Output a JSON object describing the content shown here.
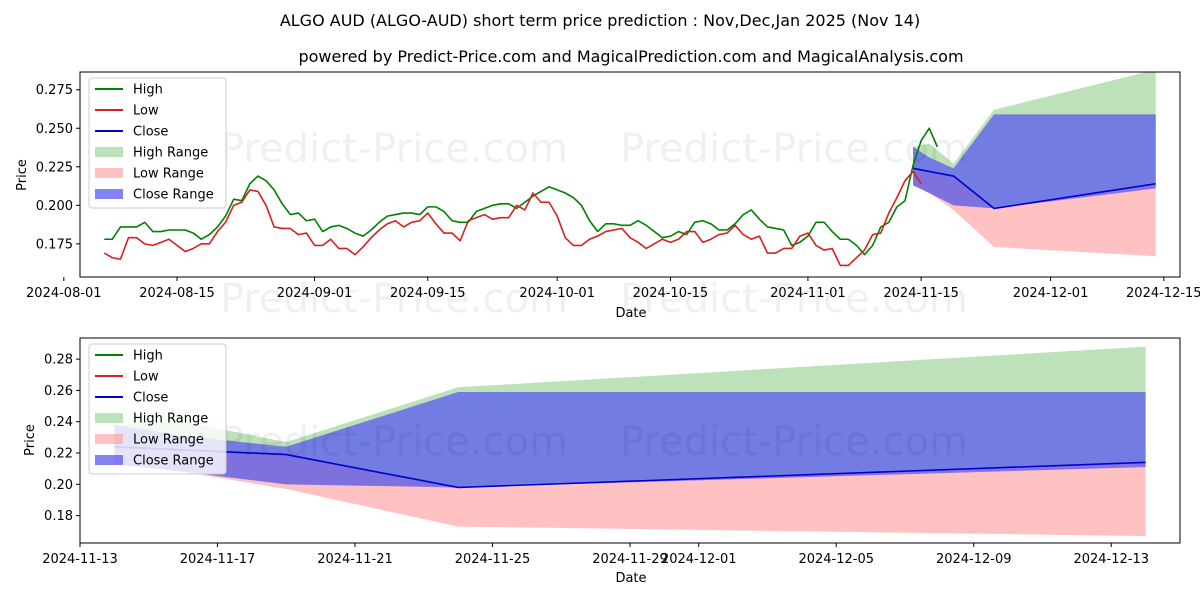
{
  "title": "ALGO AUD (ALGO-AUD) short term price prediction : Nov,Dec,Jan 2025 (Nov 14)",
  "subtitle": "powered by Predict-Price.com and MagicalPrediction.com and MagicalAnalysis.com",
  "watermark": "Predict-Price.com",
  "colors": {
    "high": "#008000",
    "low": "#d62020",
    "close": "#0000cc",
    "high_range": "#94cf8e",
    "low_range": "#ff9f9f",
    "close_range": "#5a5af0"
  },
  "chart_data": [
    {
      "type": "line",
      "panel": "top",
      "xlabel": "Date",
      "ylabel": "Price",
      "xlim": [
        "2024-08-03",
        "2024-12-17"
      ],
      "ylim": [
        0.1535,
        0.2865
      ],
      "xticks": [
        "2024-08-01",
        "2024-08-15",
        "2024-09-01",
        "2024-09-15",
        "2024-10-01",
        "2024-10-15",
        "2024-11-01",
        "2024-11-15",
        "2024-12-01",
        "2024-12-15"
      ],
      "yticks": [
        "0.175",
        "0.200",
        "0.225",
        "0.250",
        "0.275"
      ],
      "legend": [
        "High",
        "Low",
        "Close",
        "High Range",
        "Low Range",
        "Close Range"
      ],
      "legend_position": "upper-left",
      "history_start": "2024-08-06",
      "series": [
        {
          "name": "High",
          "values": [
            0.178,
            0.178,
            0.186,
            0.186,
            0.186,
            0.189,
            0.183,
            0.183,
            0.184,
            0.184,
            0.184,
            0.182,
            0.178,
            0.181,
            0.186,
            0.193,
            0.204,
            0.203,
            0.214,
            0.219,
            0.216,
            0.21,
            0.201,
            0.194,
            0.195,
            0.19,
            0.191,
            0.183,
            0.186,
            0.187,
            0.185,
            0.182,
            0.18,
            0.184,
            0.189,
            0.193,
            0.194,
            0.195,
            0.195,
            0.194,
            0.199,
            0.199,
            0.196,
            0.19,
            0.189,
            0.189,
            0.196,
            0.198,
            0.2,
            0.201,
            0.201,
            0.198,
            0.202,
            0.206,
            0.209,
            0.212,
            0.21,
            0.208,
            0.205,
            0.2,
            0.19,
            0.183,
            0.188,
            0.188,
            0.187,
            0.187,
            0.19,
            0.187,
            0.183,
            0.179,
            0.18,
            0.183,
            0.181,
            0.189,
            0.19,
            0.188,
            0.184,
            0.184,
            0.188,
            0.194,
            0.197,
            0.191,
            0.186,
            0.185,
            0.184,
            0.174,
            0.176,
            0.18,
            0.189,
            0.189,
            0.183,
            0.178,
            0.178,
            0.174,
            0.168,
            0.174,
            0.186,
            0.189,
            0.199,
            0.203,
            0.226,
            0.242,
            0.25,
            0.238
          ]
        },
        {
          "name": "Low",
          "values": [
            0.169,
            0.166,
            0.165,
            0.179,
            0.179,
            0.175,
            0.174,
            0.176,
            0.178,
            0.174,
            0.17,
            0.172,
            0.175,
            0.175,
            0.183,
            0.189,
            0.2,
            0.202,
            0.21,
            0.209,
            0.2,
            0.186,
            0.185,
            0.185,
            0.181,
            0.182,
            0.174,
            0.174,
            0.178,
            0.172,
            0.172,
            0.168,
            0.173,
            0.179,
            0.184,
            0.188,
            0.19,
            0.186,
            0.189,
            0.19,
            0.195,
            0.188,
            0.182,
            0.182,
            0.177,
            0.19,
            0.192,
            0.194,
            0.191,
            0.192,
            0.192,
            0.2,
            0.197,
            0.208,
            0.202,
            0.202,
            0.193,
            0.179,
            0.174,
            0.174,
            0.178,
            0.18,
            0.183,
            0.184,
            0.185,
            0.179,
            0.176,
            0.172,
            0.175,
            0.178,
            0.176,
            0.178,
            0.183,
            0.183,
            0.176,
            0.178,
            0.181,
            0.182,
            0.187,
            0.181,
            0.178,
            0.18,
            0.169,
            0.169,
            0.172,
            0.172,
            0.18,
            0.182,
            0.174,
            0.171,
            0.172,
            0.161,
            0.161,
            0.166,
            0.171,
            0.181,
            0.182,
            0.195,
            0.205,
            0.216,
            0.222,
            0.214
          ]
        },
        {
          "name": "Close",
          "x": [
            "2024-11-14",
            "2024-11-16",
            "2024-11-19",
            "2024-11-24",
            "2024-12-14"
          ],
          "values": [
            0.224,
            0.222,
            0.219,
            0.198,
            0.214
          ]
        }
      ],
      "ranges": {
        "x": [
          "2024-11-14",
          "2024-11-16",
          "2024-11-19",
          "2024-11-24",
          "2024-12-14"
        ],
        "high_range": {
          "upper": [
            0.238,
            0.24,
            0.227,
            0.262,
            0.288
          ],
          "lower": [
            0.213,
            0.208,
            0.2,
            0.199,
            0.214
          ]
        },
        "low_range": {
          "upper": [
            0.224,
            0.222,
            0.219,
            0.198,
            0.214
          ],
          "lower": [
            0.213,
            0.208,
            0.197,
            0.173,
            0.167
          ]
        },
        "close_range": {
          "upper": [
            0.238,
            0.231,
            0.224,
            0.259,
            0.259
          ],
          "lower": [
            0.213,
            0.208,
            0.2,
            0.198,
            0.211
          ]
        }
      }
    },
    {
      "type": "line",
      "panel": "bottom",
      "xlabel": "Date",
      "ylabel": "Price",
      "xlim": [
        "2024-11-13",
        "2024-12-15"
      ],
      "ylim": [
        0.1625,
        0.2935
      ],
      "xticks": [
        "2024-11-13",
        "2024-11-17",
        "2024-11-21",
        "2024-11-25",
        "2024-11-29",
        "2024-12-01",
        "2024-12-05",
        "2024-12-09",
        "2024-12-13"
      ],
      "yticks": [
        "0.18",
        "0.20",
        "0.22",
        "0.24",
        "0.26",
        "0.28"
      ],
      "legend": [
        "High",
        "Low",
        "Close",
        "High Range",
        "Low Range",
        "Close Range"
      ],
      "legend_position": "upper-left"
    }
  ]
}
